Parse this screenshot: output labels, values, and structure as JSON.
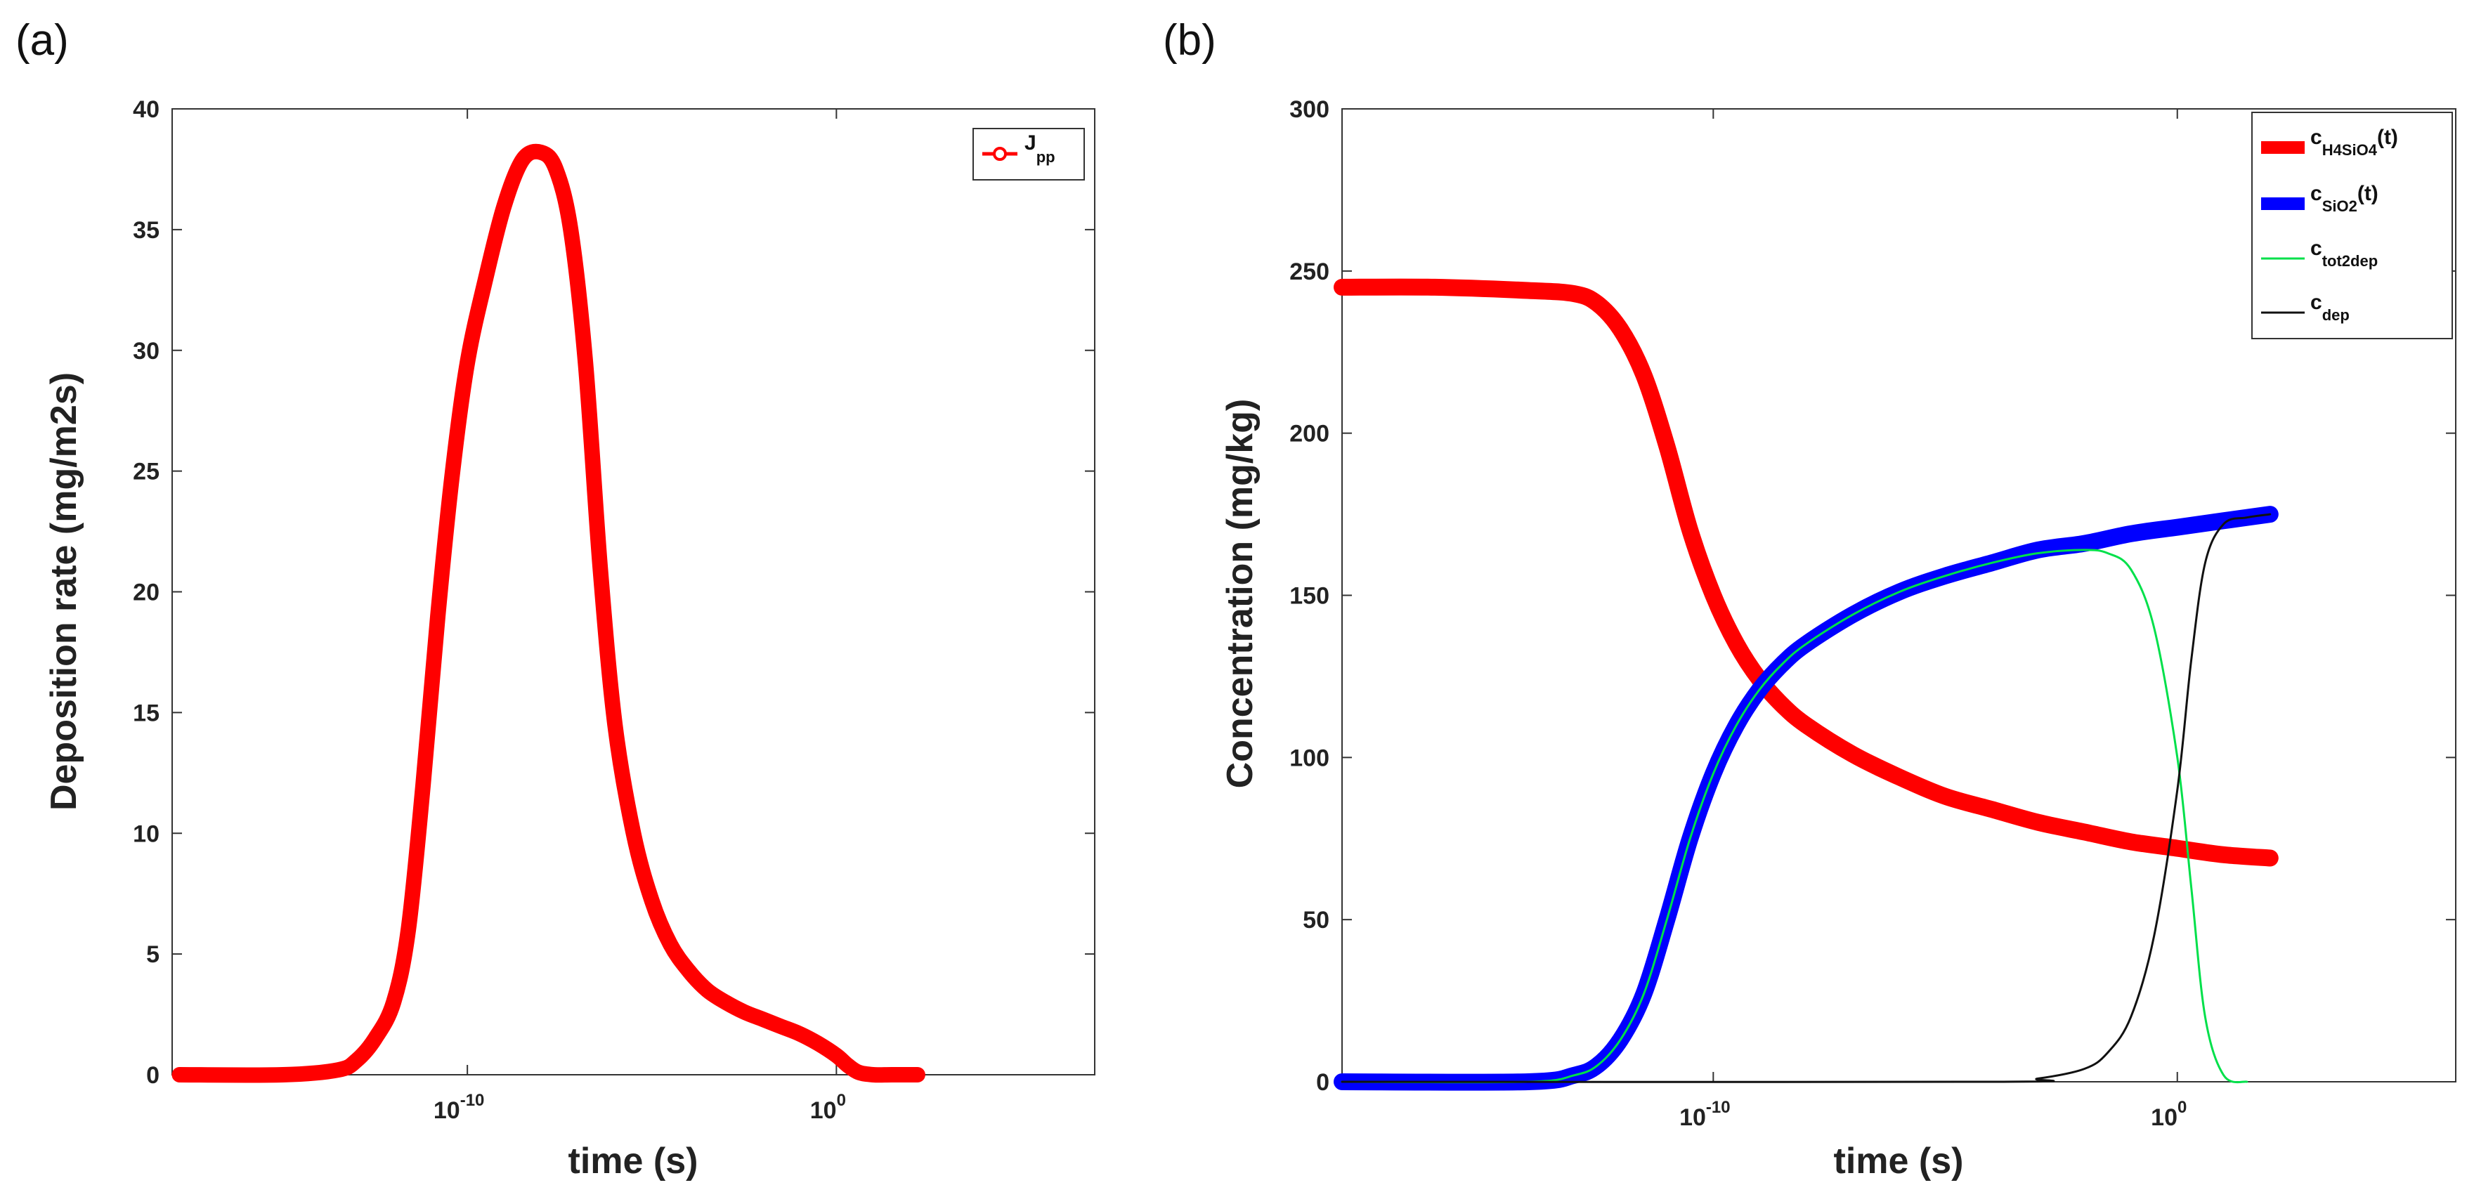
{
  "chart_data": [
    {
      "panel_label": "(a)",
      "type": "line",
      "xscale": "log",
      "xlim_exp": [
        -18,
        7
      ],
      "ylim": [
        0,
        40
      ],
      "xlabel": "time (s)",
      "ylabel": "Deposition rate (mg/m2s)",
      "xticks": [
        {
          "exp": -10,
          "base": "10",
          "sup": "-10"
        },
        {
          "exp": 0,
          "base": "10",
          "sup": "0"
        }
      ],
      "yticks": [
        0,
        5,
        10,
        15,
        20,
        25,
        30,
        35,
        40
      ],
      "legend": {
        "position": "top-right"
      },
      "series": [
        {
          "name_base": "J",
          "name_sub": "pp",
          "color": "#ff0000",
          "style": "marker",
          "x_exp": [
            -17.8,
            -15,
            -13.5,
            -13,
            -12.5,
            -12,
            -11.6,
            -11.2,
            -10.8,
            -10.4,
            -10,
            -9.5,
            -9,
            -8.5,
            -8,
            -7.6,
            -7.2,
            -6.8,
            -6.4,
            -6,
            -5.5,
            -5,
            -4.5,
            -4,
            -3.5,
            -3,
            -2.5,
            -2,
            -1.5,
            -1,
            -0.5,
            0,
            0.3,
            0.6,
            1,
            1.5,
            2.2
          ],
          "y": [
            0,
            0,
            0.2,
            0.6,
            1.5,
            3,
            6,
            12,
            19,
            25,
            29.5,
            33,
            36,
            37.9,
            38.2,
            37.5,
            35,
            29.5,
            21,
            14.5,
            10,
            7.2,
            5.4,
            4.3,
            3.5,
            3,
            2.6,
            2.3,
            2,
            1.7,
            1.3,
            0.8,
            0.4,
            0.1,
            0,
            0,
            0
          ]
        }
      ]
    },
    {
      "panel_label": "(b)",
      "type": "line",
      "xscale": "log",
      "xlim_exp": [
        -18,
        6
      ],
      "ylim": [
        0,
        300
      ],
      "xlabel": "time (s)",
      "ylabel": "Concentration (mg/kg)",
      "xticks": [
        {
          "exp": -10,
          "base": "10",
          "sup": "-10"
        },
        {
          "exp": 0,
          "base": "10",
          "sup": "0"
        }
      ],
      "yticks": [
        0,
        50,
        100,
        150,
        200,
        250,
        300
      ],
      "legend": {
        "position": "top-right"
      },
      "series": [
        {
          "name_base": "c",
          "name_sub": "H4SiO4",
          "name_tail": "(t)",
          "color": "#ff0000",
          "style": "thick",
          "x_exp": [
            -18,
            -16,
            -14,
            -13,
            -12.5,
            -12,
            -11.5,
            -11,
            -10.5,
            -10,
            -9.5,
            -9,
            -8.5,
            -8,
            -7,
            -6,
            -5,
            -4,
            -3,
            -2,
            -1,
            0,
            1,
            2
          ],
          "y": [
            245,
            245,
            244,
            243,
            240,
            232,
            218,
            196,
            170,
            150,
            135,
            124,
            116,
            110,
            101,
            94,
            88,
            84,
            80,
            77,
            74,
            72,
            70,
            69
          ]
        },
        {
          "name_base": "c",
          "name_sub": "SiO2",
          "name_tail": "(t)",
          "color": "#0000ff",
          "style": "thick",
          "x_exp": [
            -18,
            -14,
            -13,
            -12.5,
            -12,
            -11.5,
            -11,
            -10.5,
            -10,
            -9.5,
            -9,
            -8.5,
            -8,
            -7,
            -6,
            -5,
            -4,
            -3,
            -2,
            -1,
            0,
            1,
            2
          ],
          "y": [
            0,
            0,
            2,
            5,
            13,
            27,
            50,
            75,
            95,
            110,
            121,
            129,
            135,
            144,
            151,
            156,
            160,
            164,
            166,
            169,
            171,
            173,
            175
          ]
        },
        {
          "name_base": "c",
          "name_sub": "tot2dep",
          "name_tail": "",
          "color": "#00e04a",
          "style": "thin",
          "x_exp": [
            -18,
            -14,
            -13,
            -12.5,
            -12,
            -11.5,
            -11,
            -10.5,
            -10,
            -9.5,
            -9,
            -8.5,
            -8,
            -7,
            -6,
            -5,
            -4,
            -3,
            -2,
            -1.5,
            -1,
            -0.5,
            0,
            0.3,
            0.6,
            1,
            1.5
          ],
          "y": [
            0,
            0,
            2,
            5,
            13,
            27,
            50,
            75,
            95,
            110,
            121,
            129,
            135,
            144,
            151,
            156,
            160,
            163,
            164,
            163,
            158,
            140,
            100,
            60,
            20,
            2,
            0
          ]
        },
        {
          "name_base": "c",
          "name_sub": "dep",
          "name_tail": "",
          "color": "#111111",
          "style": "thin",
          "x_exp": [
            -18,
            -4,
            -3,
            -2,
            -1.5,
            -1,
            -0.5,
            0,
            0.3,
            0.6,
            1,
            1.5,
            2
          ],
          "y": [
            0,
            0,
            1,
            4,
            9,
            20,
            45,
            90,
            130,
            160,
            172,
            174,
            175
          ]
        }
      ]
    }
  ]
}
